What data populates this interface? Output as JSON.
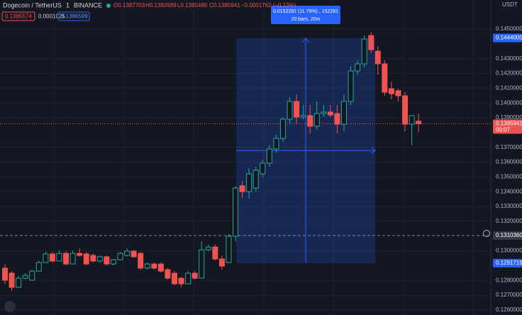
{
  "chart_data": {
    "type": "candlestick",
    "title": "Dogecoin / TetherUS",
    "interval": "1",
    "exchange": "BINANCE",
    "ohlc_legend": [
      "O0.1387703",
      "H0.1392689",
      "L0.1380486",
      "C0.1385941",
      "−0.0001762 (−0.13%)"
    ],
    "header_prices": [
      "0.1385574",
      "0.0001025",
      "0.1386599"
    ],
    "currency": "USDT",
    "up_color": "#26a69a",
    "down_color": "#ef5350",
    "open": [
      0.12883,
      0.12849,
      0.12753,
      0.12815,
      0.12801,
      0.12863,
      0.12921,
      0.12979,
      0.12931,
      0.12983,
      0.12911,
      0.12983,
      0.12979,
      0.12969,
      0.12931,
      0.1296,
      0.12911,
      0.1294,
      0.12969,
      0.12998,
      0.12983,
      0.12883,
      0.12911,
      0.12911,
      0.12873,
      0.12849,
      0.12815,
      0.12777,
      0.12849,
      0.12815,
      0.13007,
      0.13026,
      0.12945,
      0.12921,
      0.13099,
      0.1344,
      0.13401,
      0.13425,
      0.13521,
      0.13593,
      0.13689,
      0.13761,
      0.13891,
      0.14011,
      0.13905,
      0.13915,
      0.13843,
      0.13929,
      0.13939,
      0.13929,
      0.13857,
      0.14011,
      0.14217,
      0.14265,
      0.14457,
      0.14351,
      0.14265,
      0.14097,
      0.14083,
      0.14049,
      0.13857,
      0.1387703
    ],
    "high": [
      0.12911,
      0.12863,
      0.1283,
      0.12849,
      0.12873,
      0.12935,
      0.12993,
      0.12993,
      0.13003,
      0.12998,
      0.13003,
      0.13017,
      0.12993,
      0.12983,
      0.12969,
      0.12969,
      0.12945,
      0.12993,
      0.13017,
      0.13008,
      0.12993,
      0.12921,
      0.12921,
      0.12921,
      0.12883,
      0.12863,
      0.12825,
      0.12863,
      0.12863,
      0.13065,
      0.13041,
      0.13041,
      0.12969,
      0.13113,
      0.1344,
      0.13473,
      0.1356,
      0.13569,
      0.13617,
      0.13713,
      0.13785,
      0.13905,
      0.1404,
      0.14059,
      0.13987,
      0.13987,
      0.14011,
      0.13987,
      0.13987,
      0.13987,
      0.14059,
      0.1425,
      0.14289,
      0.14457,
      0.14481,
      0.14385,
      0.14289,
      0.14145,
      0.14097,
      0.14073,
      0.13915,
      0.1392689
    ],
    "low": [
      0.12777,
      0.12729,
      0.12753,
      0.12806,
      0.12801,
      0.12863,
      0.12921,
      0.12921,
      0.12931,
      0.12902,
      0.12911,
      0.1296,
      0.12902,
      0.12921,
      0.12921,
      0.12902,
      0.12902,
      0.12935,
      0.1296,
      0.12955,
      0.12873,
      0.12873,
      0.12873,
      0.12854,
      0.12806,
      0.12767,
      0.12753,
      0.12777,
      0.12806,
      0.12815,
      0.12998,
      0.12935,
      0.12873,
      0.12921,
      0.13065,
      0.13357,
      0.13353,
      0.13401,
      0.13497,
      0.13569,
      0.13665,
      0.13737,
      0.13857,
      0.13857,
      0.13889,
      0.13795,
      0.13819,
      0.13905,
      0.13905,
      0.13795,
      0.13809,
      0.13987,
      0.14193,
      0.14241,
      0.14337,
      0.14193,
      0.14049,
      0.14025,
      0.14011,
      0.13809,
      0.13713,
      0.1380486
    ],
    "close": [
      0.12801,
      0.12753,
      0.12815,
      0.12834,
      0.12863,
      0.12921,
      0.12979,
      0.12931,
      0.12983,
      0.12911,
      0.12983,
      0.12969,
      0.12911,
      0.12931,
      0.1296,
      0.12911,
      0.1294,
      0.12983,
      0.12998,
      0.1296,
      0.12883,
      0.12911,
      0.12883,
      0.12863,
      0.12815,
      0.12777,
      0.12777,
      0.12849,
      0.12815,
      0.13007,
      0.13026,
      0.12945,
      0.12897,
      0.13099,
      0.13425,
      0.13401,
      0.13521,
      0.13545,
      0.13593,
      0.13689,
      0.13761,
      0.13891,
      0.14011,
      0.13905,
      0.13915,
      0.13843,
      0.13929,
      0.13939,
      0.13919,
      0.13857,
      0.14011,
      0.14217,
      0.14265,
      0.14433,
      0.14361,
      0.14265,
      0.14073,
      0.14063,
      0.14049,
      0.13857,
      0.13915,
      0.1385941
    ],
    "ylim": [
      0.12566,
      0.14697
    ],
    "yticks": [
      {
        "value": 0.126,
        "label": "0.1260000"
      },
      {
        "value": 0.127,
        "label": "0.1270000"
      },
      {
        "value": 0.128,
        "label": "0.1280000"
      },
      {
        "value": 0.13,
        "label": "0.1300000"
      },
      {
        "value": 0.132,
        "label": "0.1320000"
      },
      {
        "value": 0.133,
        "label": "0.1330000"
      },
      {
        "value": 0.134,
        "label": "0.1340000"
      },
      {
        "value": 0.135,
        "label": "0.1350000"
      },
      {
        "value": 0.136,
        "label": "0.1360000"
      },
      {
        "value": 0.137,
        "label": "0.1370000"
      },
      {
        "value": 0.139,
        "label": "0.1390000"
      },
      {
        "value": 0.14,
        "label": "0.1400000"
      },
      {
        "value": 0.141,
        "label": "0.1410000"
      },
      {
        "value": 0.142,
        "label": "0.1420000"
      },
      {
        "value": 0.143,
        "label": "0.1430000"
      },
      {
        "value": 0.145,
        "label": "0.1450000"
      }
    ],
    "grid": true,
    "measure": {
      "high": {
        "value": 0.1444,
        "label": "0.1444000"
      },
      "low": {
        "value": 0.1291719,
        "label": "0.1291719"
      },
      "text": "0.0152281 (11.79%) , 152281",
      "subtext": "20 bars, 20m"
    },
    "crosshair_price": {
      "value": 0.131036,
      "label": "0.1310360"
    },
    "last_price": {
      "value": 0.1385941,
      "label": "0.1385941",
      "countdown": "00:07"
    }
  }
}
